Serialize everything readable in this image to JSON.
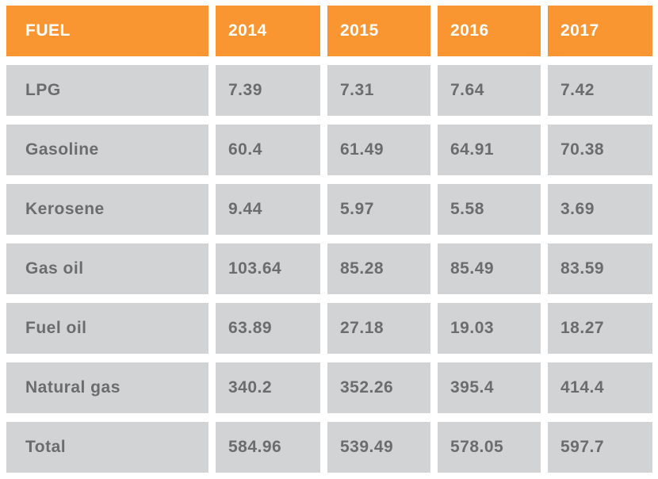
{
  "colors": {
    "header_bg": "#FA9632",
    "header_text": "#FFFFFF",
    "cell_bg": "#D2D3D4",
    "cell_text": "#6B6C6E",
    "page_bg": "#FFFFFF"
  },
  "chart_data": {
    "type": "table",
    "title": "",
    "columns": [
      "FUEL",
      "2014",
      "2015",
      "2016",
      "2017"
    ],
    "rows": [
      {
        "label": "LPG",
        "values": [
          7.39,
          7.31,
          7.64,
          7.42
        ]
      },
      {
        "label": "Gasoline",
        "values": [
          60.4,
          61.49,
          64.91,
          70.38
        ]
      },
      {
        "label": "Kerosene",
        "values": [
          9.44,
          5.97,
          5.58,
          3.69
        ]
      },
      {
        "label": "Gas oil",
        "values": [
          103.64,
          85.28,
          85.49,
          83.59
        ]
      },
      {
        "label": "Fuel oil",
        "values": [
          63.89,
          27.18,
          19.03,
          18.27
        ]
      },
      {
        "label": "Natural gas",
        "values": [
          340.2,
          352.26,
          395.4,
          414.4
        ]
      },
      {
        "label": "Total",
        "values": [
          584.96,
          539.49,
          578.05,
          597.7
        ]
      }
    ]
  }
}
